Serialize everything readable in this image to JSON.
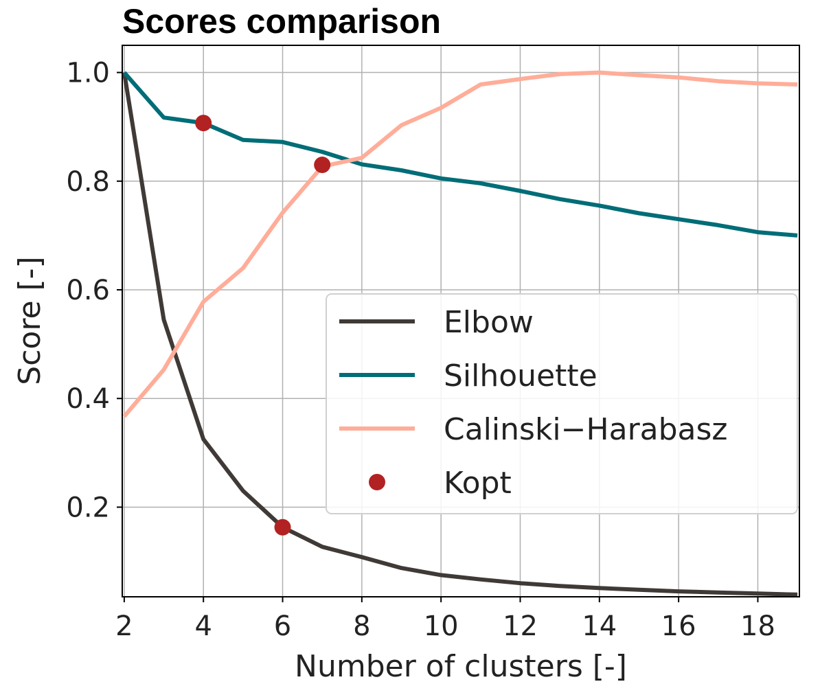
{
  "chart_data": {
    "type": "line",
    "title": "Scores comparison",
    "xlabel": "Number of clusters [-]",
    "ylabel": "Score [-]",
    "xlim": [
      1.95,
      19.05
    ],
    "ylim": [
      0.035,
      1.05
    ],
    "xticks": [
      2,
      4,
      6,
      8,
      10,
      12,
      14,
      16,
      18
    ],
    "yticks": [
      0.2,
      0.4,
      0.6,
      0.8,
      1.0
    ],
    "ytick_labels": [
      "0.2",
      "0.4",
      "0.6",
      "0.8",
      "1.0"
    ],
    "grid": true,
    "legend_position": "center-right",
    "x": [
      2,
      3,
      4,
      5,
      6,
      7,
      8,
      9,
      10,
      11,
      12,
      13,
      14,
      15,
      16,
      17,
      18,
      19
    ],
    "series": [
      {
        "name": "Elbow",
        "color": "#403a37",
        "values": [
          1.0,
          0.545,
          0.325,
          0.23,
          0.163,
          0.127,
          0.108,
          0.088,
          0.075,
          0.067,
          0.06,
          0.055,
          0.051,
          0.048,
          0.045,
          0.043,
          0.041,
          0.039
        ]
      },
      {
        "name": "Silhouette",
        "color": "#006d77",
        "values": [
          1.0,
          0.917,
          0.907,
          0.876,
          0.872,
          0.854,
          0.831,
          0.82,
          0.805,
          0.796,
          0.782,
          0.767,
          0.755,
          0.741,
          0.73,
          0.719,
          0.706,
          0.7
        ]
      },
      {
        "name": "Calinski−Harabasz",
        "color": "#ffad99",
        "values": [
          0.367,
          0.453,
          0.578,
          0.64,
          0.742,
          0.827,
          0.843,
          0.903,
          0.935,
          0.978,
          0.988,
          0.997,
          1.0,
          0.995,
          0.991,
          0.984,
          0.98,
          0.978
        ]
      }
    ],
    "markers": {
      "name": "Kopt",
      "color": "#b22222",
      "points": [
        {
          "x": 6,
          "y": 0.163
        },
        {
          "x": 4,
          "y": 0.907
        },
        {
          "x": 7,
          "y": 0.83
        }
      ]
    }
  }
}
